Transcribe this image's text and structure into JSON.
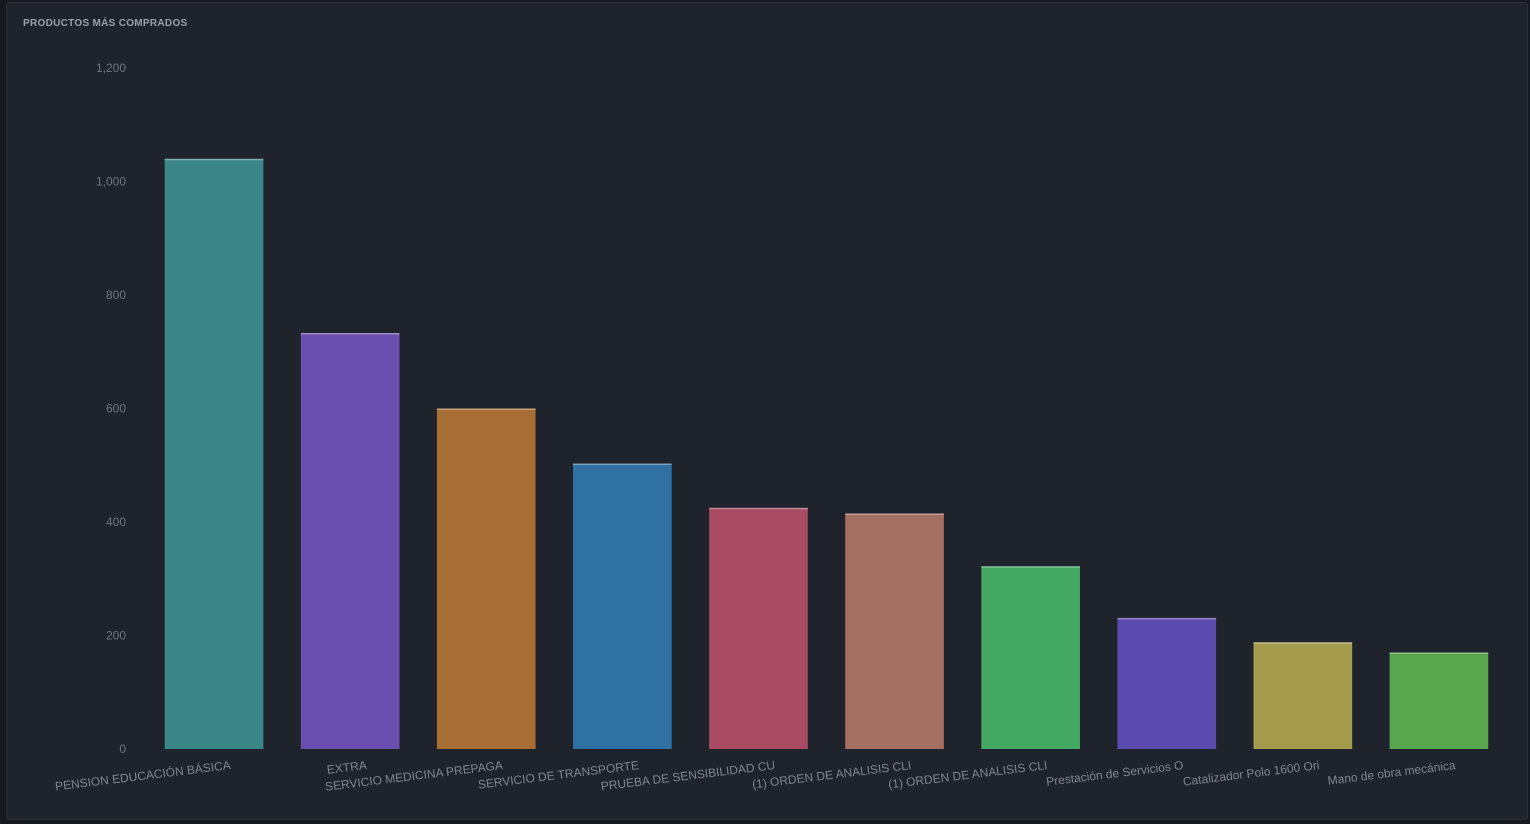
{
  "panel": {
    "title": "PRODUCTOS MÁS COMPRADOS"
  },
  "chart_data": {
    "type": "bar",
    "title": "PRODUCTOS MÁS COMPRADOS",
    "xlabel": "",
    "ylabel": "",
    "ylim": [
      0,
      1200
    ],
    "yticks": [
      0,
      200,
      400,
      600,
      800,
      1000,
      1200
    ],
    "ytick_labels": [
      "0",
      "200",
      "400",
      "600",
      "800",
      "1,000",
      "1,200"
    ],
    "grid": false,
    "legend": "none",
    "categories": [
      "PENSION EDUCACIÓN BÁSICA",
      "EXTRA",
      "SERVICIO MEDICINA PREPAGA",
      "SERVICIO DE TRANSPORTE",
      "PRUEBA DE SENSIBILIDAD CU",
      "(1) ORDEN DE ANALISIS CLI",
      "(1) ORDEN DE ANALISIS CLI",
      "Prestación de Servicios O",
      "Catalizador Polo 1600 Ori",
      "Mano de obra mecánica"
    ],
    "values": [
      1040,
      733,
      600,
      503,
      425,
      415,
      322,
      231,
      188,
      170
    ],
    "colors": [
      "#3b8686",
      "#6a4fae",
      "#a66d34",
      "#2f71a2",
      "#a74a62",
      "#a56f62",
      "#43a861",
      "#5a4aad",
      "#a69a4d",
      "#58a64e"
    ]
  }
}
